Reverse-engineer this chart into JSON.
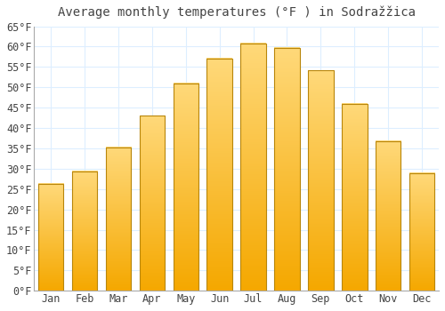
{
  "title": "Average monthly temperatures (°F ) in Sodražžica",
  "months": [
    "Jan",
    "Feb",
    "Mar",
    "Apr",
    "May",
    "Jun",
    "Jul",
    "Aug",
    "Sep",
    "Oct",
    "Nov",
    "Dec"
  ],
  "values": [
    26.2,
    29.3,
    35.2,
    43.0,
    51.0,
    57.0,
    60.7,
    59.7,
    54.1,
    46.0,
    36.8,
    28.9
  ],
  "bar_color_light": "#FFD97A",
  "bar_color_dark": "#F5A800",
  "bar_edge_color": "#B8860B",
  "background_color": "#FFFFFF",
  "grid_color": "#DDEEFF",
  "text_color": "#444444",
  "ylim": [
    0,
    65
  ],
  "yticks": [
    0,
    5,
    10,
    15,
    20,
    25,
    30,
    35,
    40,
    45,
    50,
    55,
    60,
    65
  ],
  "title_fontsize": 10,
  "tick_fontsize": 8.5,
  "font_family": "monospace"
}
